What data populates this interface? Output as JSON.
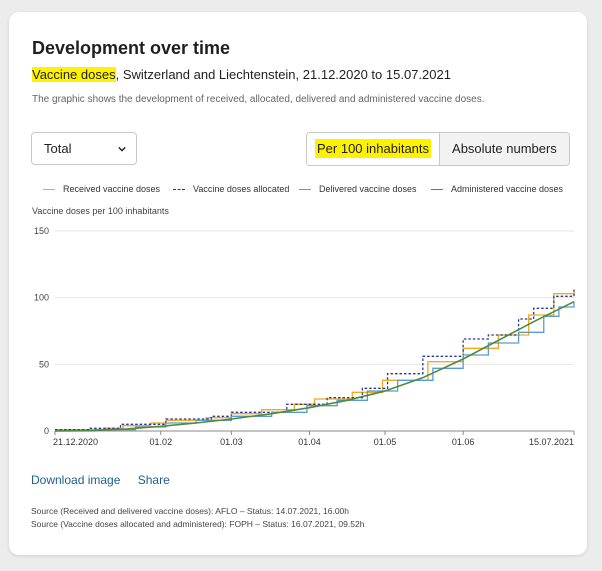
{
  "title": "Development over time",
  "subtitle": {
    "highlight": "Vaccine doses",
    "rest": ", Switzerland and Liechtenstein, 21.12.2020 to 15.07.2021"
  },
  "description": "The graphic shows the development of received, allocated, delivered and administered vaccine doses.",
  "select": {
    "value": "Total"
  },
  "toggle": {
    "active": "Per 100 inhabitants",
    "inactive": "Absolute numbers"
  },
  "colors": {
    "highlight": "#fff200",
    "link": "#1c5f8c"
  },
  "links": {
    "download": "Download image",
    "share": "Share"
  },
  "sources": [
    "Source (Received and delivered vaccine doses): AFLO – Status: 14.07.2021, 16.00h",
    "Source (Vaccine doses allocated and administered): FOPH – Status: 16.07.2021, 09.52h"
  ],
  "chart_data": {
    "type": "line",
    "ylabel": "Vaccine doses per 100 inhabitants",
    "ylim": [
      0,
      150
    ],
    "yticks": [
      0,
      50,
      100,
      150
    ],
    "xlim": [
      0,
      206
    ],
    "xticks": [
      {
        "label": "21.12.2020",
        "x": 0
      },
      {
        "label": "01.02",
        "x": 42
      },
      {
        "label": "01.03",
        "x": 70
      },
      {
        "label": "01.04",
        "x": 101
      },
      {
        "label": "01.05",
        "x": 131
      },
      {
        "label": "01.06",
        "x": 162
      },
      {
        "label": "15.07.2021",
        "x": 206
      }
    ],
    "grid": true,
    "legend_position": "top",
    "series": [
      {
        "name": "Received vaccine doses",
        "color": "#f5a623",
        "dash": "solid",
        "step": true,
        "points": [
          [
            0,
            1
          ],
          [
            8,
            1
          ],
          [
            20,
            2
          ],
          [
            27,
            4
          ],
          [
            38,
            6
          ],
          [
            44,
            8
          ],
          [
            60,
            10
          ],
          [
            70,
            13
          ],
          [
            82,
            16
          ],
          [
            95,
            20
          ],
          [
            103,
            24
          ],
          [
            118,
            29
          ],
          [
            130,
            38
          ],
          [
            148,
            52
          ],
          [
            162,
            62
          ],
          [
            176,
            72
          ],
          [
            188,
            87
          ],
          [
            198,
            103
          ],
          [
            206,
            106
          ]
        ]
      },
      {
        "name": "Vaccine doses allocated",
        "color": "#2b3a8f",
        "dash": "dotted",
        "step": true,
        "points": [
          [
            0,
            1
          ],
          [
            14,
            2
          ],
          [
            26,
            5
          ],
          [
            44,
            9
          ],
          [
            62,
            11
          ],
          [
            70,
            14
          ],
          [
            92,
            20
          ],
          [
            108,
            25
          ],
          [
            122,
            32
          ],
          [
            132,
            43
          ],
          [
            146,
            56
          ],
          [
            162,
            69
          ],
          [
            172,
            72
          ],
          [
            184,
            84
          ],
          [
            190,
            92
          ],
          [
            198,
            101
          ],
          [
            206,
            106
          ]
        ]
      },
      {
        "name": "Delivered vaccine doses",
        "color": "#5b9bd5",
        "dash": "solid",
        "step": true,
        "points": [
          [
            0,
            0
          ],
          [
            16,
            1
          ],
          [
            32,
            3
          ],
          [
            44,
            6
          ],
          [
            56,
            8
          ],
          [
            70,
            11
          ],
          [
            86,
            14
          ],
          [
            100,
            19
          ],
          [
            112,
            23
          ],
          [
            124,
            30
          ],
          [
            136,
            38
          ],
          [
            150,
            47
          ],
          [
            162,
            57
          ],
          [
            172,
            66
          ],
          [
            184,
            74
          ],
          [
            194,
            86
          ],
          [
            200,
            93
          ],
          [
            206,
            97
          ]
        ]
      },
      {
        "name": "Administered vaccine doses",
        "color": "#4e8b3a",
        "dash": "solid",
        "step": false,
        "points": [
          [
            0,
            0
          ],
          [
            14,
            0.3
          ],
          [
            28,
            1.5
          ],
          [
            42,
            3.5
          ],
          [
            56,
            6
          ],
          [
            70,
            9
          ],
          [
            86,
            13
          ],
          [
            101,
            17.5
          ],
          [
            116,
            23
          ],
          [
            131,
            30
          ],
          [
            146,
            40
          ],
          [
            162,
            54
          ],
          [
            176,
            68
          ],
          [
            190,
            82
          ],
          [
            206,
            97
          ]
        ]
      }
    ]
  }
}
